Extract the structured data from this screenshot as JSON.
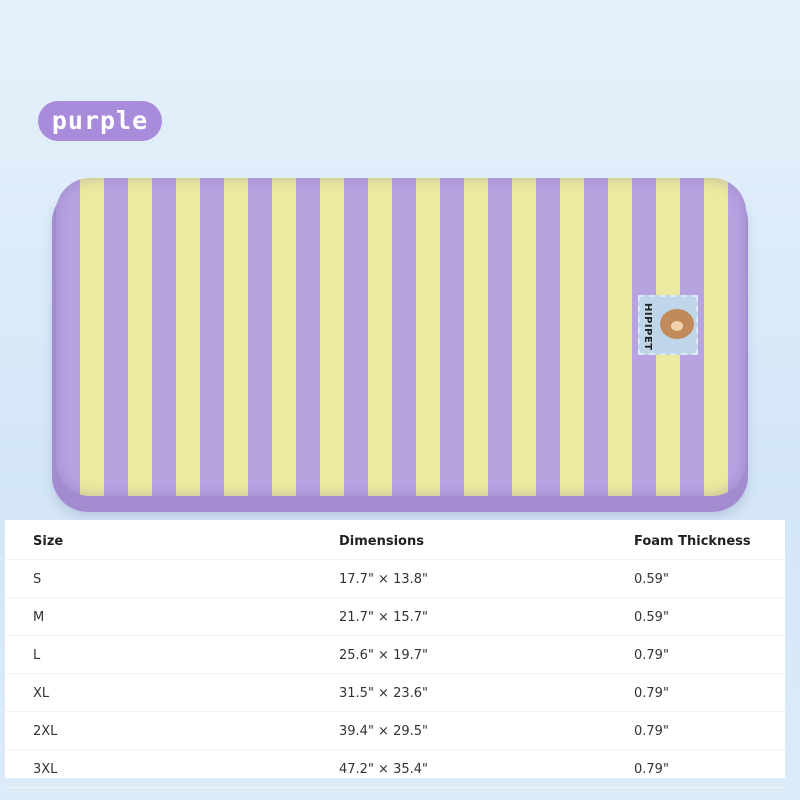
{
  "color_badge": {
    "label": "purple",
    "color": "#a98bdc"
  },
  "product": {
    "brand_tag": "HIPIPET",
    "stripe_colors": [
      "#b7a3e0",
      "#ecea9e"
    ]
  },
  "size_table": {
    "headers": [
      "Size",
      "Dimensions",
      "Foam Thickness"
    ],
    "rows": [
      [
        "S",
        "17.7\" × 13.8\"",
        "0.59\""
      ],
      [
        "M",
        "21.7\" × 15.7\"",
        "0.59\""
      ],
      [
        "L",
        "25.6\" × 19.7\"",
        "0.79\""
      ],
      [
        "XL",
        "31.5\" × 23.6\"",
        "0.79\""
      ],
      [
        "2XL",
        "39.4\" × 29.5\"",
        "0.79\""
      ],
      [
        "3XL",
        "47.2\" × 35.4\"",
        "0.79\""
      ]
    ]
  }
}
